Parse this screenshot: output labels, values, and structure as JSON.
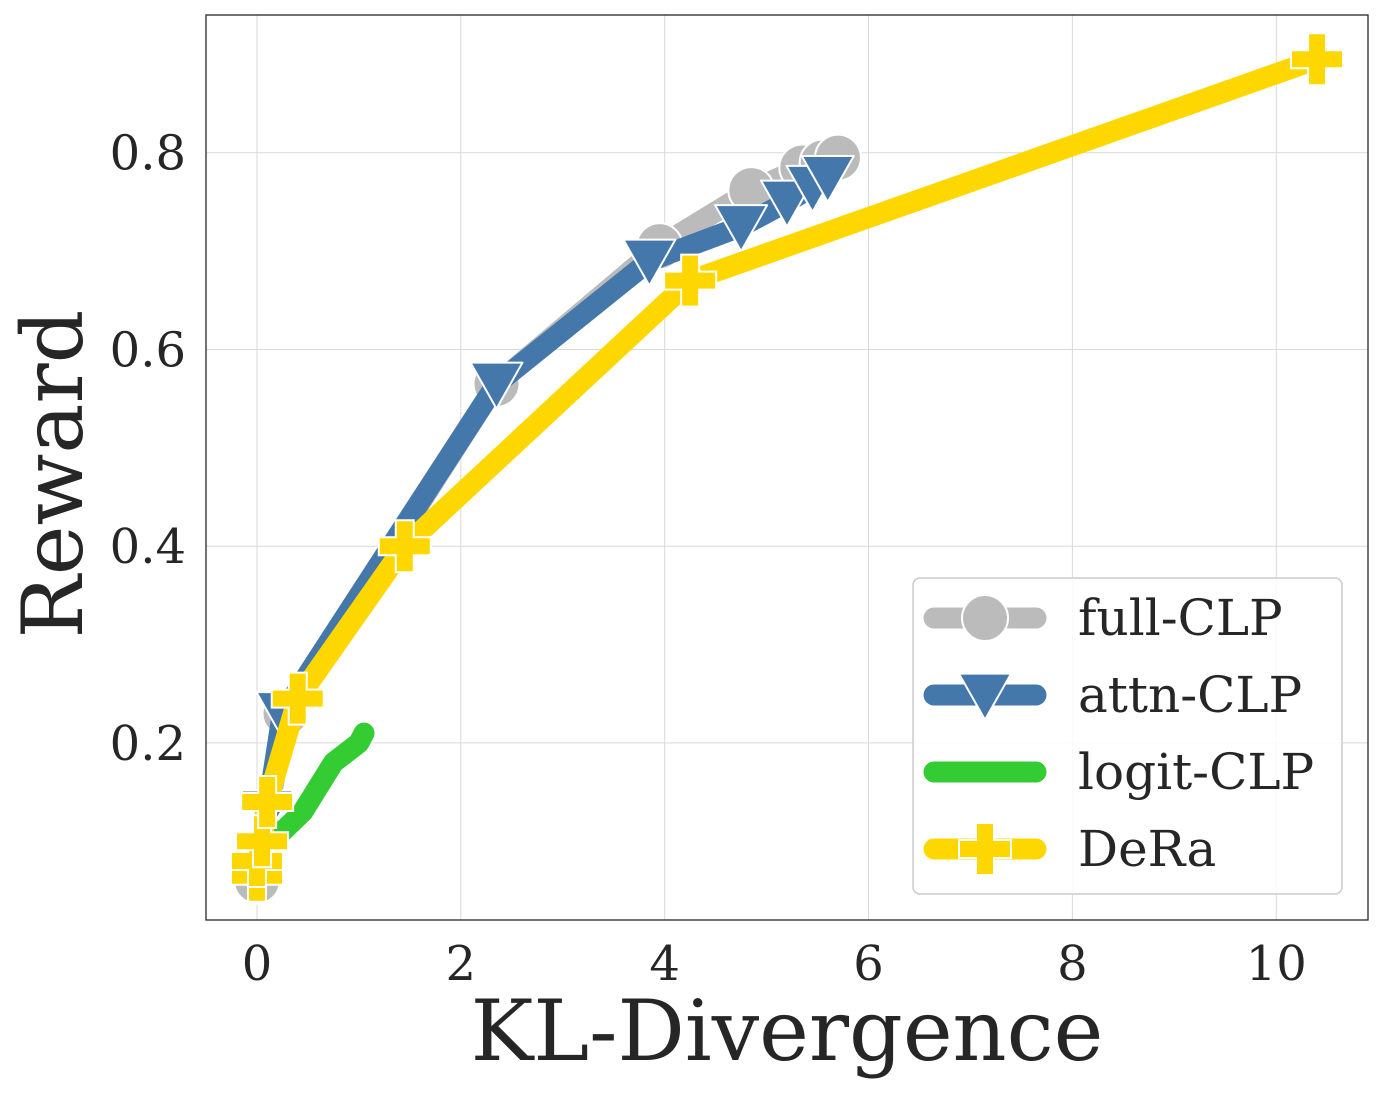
{
  "chart_data": {
    "type": "line",
    "title": "",
    "xlabel": "KL-Divergence",
    "ylabel": "Reward",
    "xlim": [
      -0.5,
      10.9
    ],
    "ylim": [
      0.02,
      0.94
    ],
    "xticks": [
      0,
      2,
      4,
      6,
      8,
      10
    ],
    "xtick_labels": [
      "0",
      "2",
      "4",
      "6",
      "8",
      "10"
    ],
    "yticks": [
      0.2,
      0.4,
      0.6,
      0.8
    ],
    "ytick_labels": [
      "0.2",
      "0.4",
      "0.6",
      "0.8"
    ],
    "grid": true,
    "legend_position": "bottom-right",
    "series": [
      {
        "name": "full-CLP",
        "color": "#bbbbbb",
        "marker": "circle",
        "x": [
          0.0,
          0.28,
          2.35,
          3.95,
          4.85,
          5.35,
          5.55,
          5.7
        ],
        "y": [
          0.06,
          0.23,
          0.565,
          0.705,
          0.762,
          0.785,
          0.79,
          0.795
        ]
      },
      {
        "name": "attn-CLP",
        "color": "#4477aa",
        "marker": "triangle-down",
        "x": [
          0.0,
          0.05,
          0.1,
          0.25,
          2.35,
          3.85,
          4.75,
          5.2,
          5.45,
          5.6
        ],
        "y": [
          0.065,
          0.085,
          0.13,
          0.23,
          0.565,
          0.69,
          0.725,
          0.75,
          0.765,
          0.775
        ]
      },
      {
        "name": "logit-CLP",
        "color": "#33cc33",
        "marker": "none",
        "x": [
          0.15,
          0.45,
          0.75,
          1.0,
          1.05
        ],
        "y": [
          0.1,
          0.13,
          0.18,
          0.2,
          0.21
        ]
      },
      {
        "name": "DeRa",
        "color": "#ffd700",
        "marker": "plus",
        "x": [
          0.0,
          0.0,
          0.05,
          0.1,
          0.4,
          1.45,
          4.25,
          10.4
        ],
        "y": [
          0.065,
          0.08,
          0.1,
          0.14,
          0.245,
          0.4,
          0.67,
          0.895
        ]
      }
    ]
  }
}
